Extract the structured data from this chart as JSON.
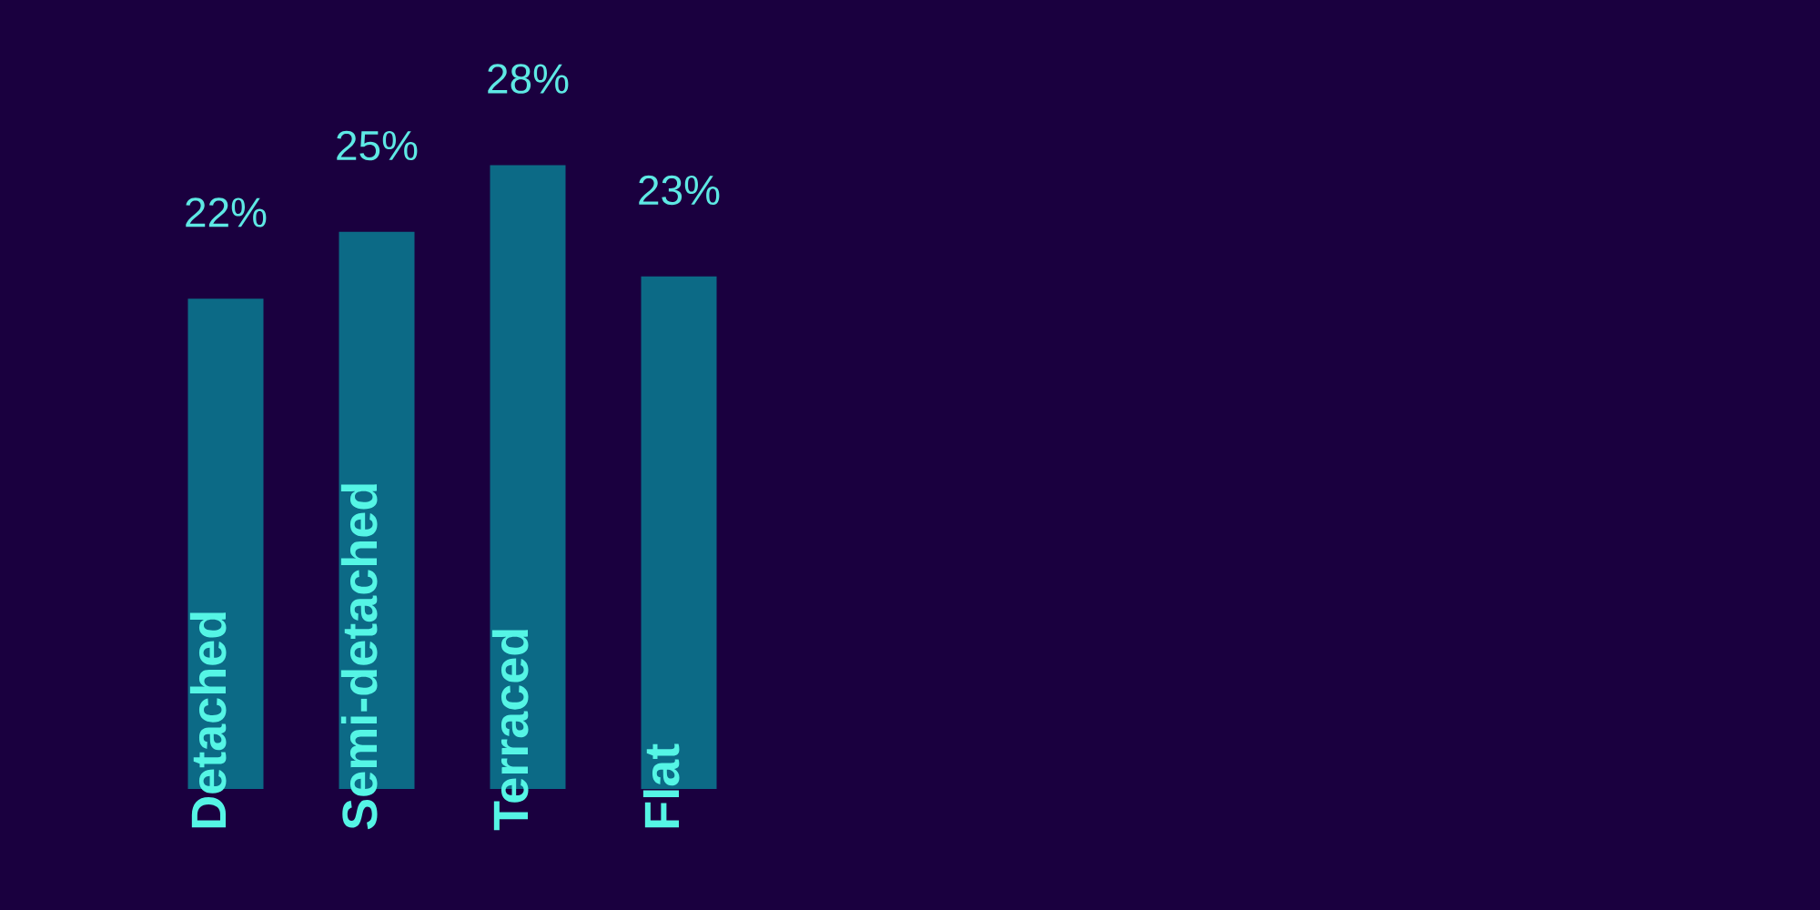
{
  "chart_data": {
    "type": "bar",
    "categories": [
      "Detached",
      "Semi-detached",
      "Terraced",
      "Flat"
    ],
    "values": [
      22,
      25,
      28,
      23
    ],
    "value_labels": [
      "22%",
      "25%",
      "28%",
      "23%"
    ],
    "color": "#0c6a86",
    "tick_labels": "x"
  }
}
